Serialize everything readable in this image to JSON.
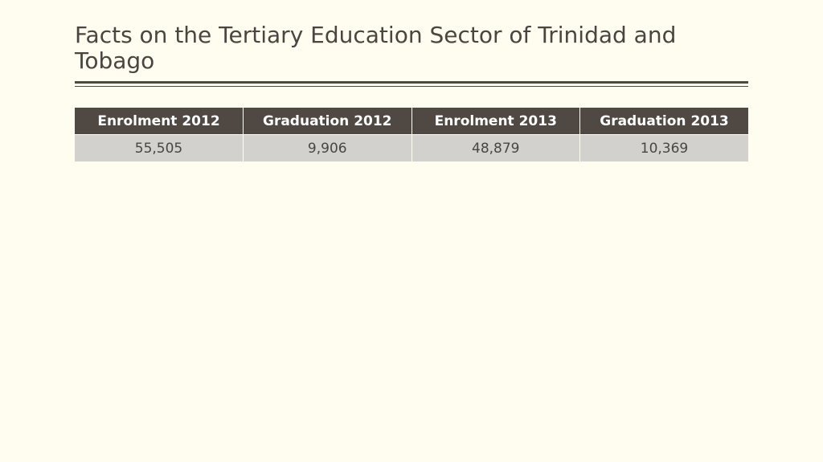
{
  "header": {
    "title": "Facts on the Tertiary Education Sector of Trinidad and Tobago"
  },
  "table": {
    "columns": [
      "Enrolment 2012",
      "Graduation 2012",
      "Enrolment 2013",
      "Graduation 2013"
    ],
    "rows": [
      [
        "55,505",
        "9,906",
        "48,879",
        "10,369"
      ]
    ]
  }
}
